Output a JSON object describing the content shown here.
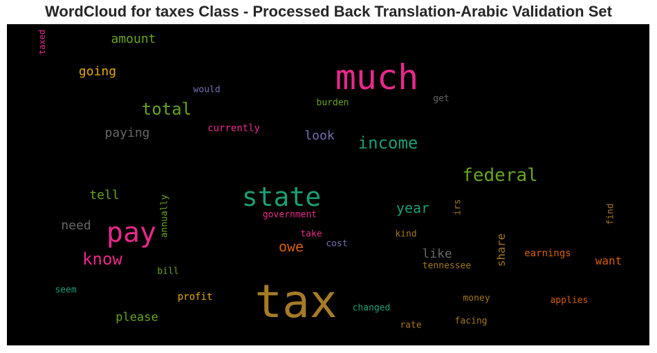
{
  "chart_data": {
    "type": "wordcloud",
    "title": "WordCloud for taxes Class - Processed Back Translation-Arabic Validation Set",
    "background": "#000000",
    "words": [
      {
        "text": "tax",
        "color": "#a67b26"
      },
      {
        "text": "much",
        "color": "#e7298a"
      },
      {
        "text": "state",
        "color": "#1b9e77"
      },
      {
        "text": "pay",
        "color": "#e7298a"
      },
      {
        "text": "federal",
        "color": "#66a61e"
      },
      {
        "text": "income",
        "color": "#1b9e77"
      },
      {
        "text": "total",
        "color": "#66a61e"
      },
      {
        "text": "know",
        "color": "#e7298a"
      },
      {
        "text": "owe",
        "color": "#d95f02"
      },
      {
        "text": "year",
        "color": "#1b9e77"
      },
      {
        "text": "amount",
        "color": "#66a61e"
      },
      {
        "text": "going",
        "color": "#e6ab02"
      },
      {
        "text": "tell",
        "color": "#66a61e"
      },
      {
        "text": "paying",
        "color": "#666666"
      },
      {
        "text": "need",
        "color": "#666666"
      },
      {
        "text": "look",
        "color": "#7570b3"
      },
      {
        "text": "please",
        "color": "#66a61e"
      },
      {
        "text": "like",
        "color": "#666666"
      },
      {
        "text": "share",
        "color": "#a6761d"
      },
      {
        "text": "want",
        "color": "#d95f02"
      },
      {
        "text": "would",
        "color": "#7570b3"
      },
      {
        "text": "currently",
        "color": "#e7298a"
      },
      {
        "text": "burden",
        "color": "#66a61e"
      },
      {
        "text": "get",
        "color": "#666666"
      },
      {
        "text": "government",
        "color": "#e7298a"
      },
      {
        "text": "take",
        "color": "#e7298a"
      },
      {
        "text": "cost",
        "color": "#7570b3"
      },
      {
        "text": "kind",
        "color": "#a6761d"
      },
      {
        "text": "tennessee",
        "color": "#a6761d"
      },
      {
        "text": "earnings",
        "color": "#d95f02"
      },
      {
        "text": "applies",
        "color": "#d95f02"
      },
      {
        "text": "money",
        "color": "#a6761d"
      },
      {
        "text": "facing",
        "color": "#a6761d"
      },
      {
        "text": "rate",
        "color": "#a6761d"
      },
      {
        "text": "changed",
        "color": "#1b9e77"
      },
      {
        "text": "profit",
        "color": "#e6ab02"
      },
      {
        "text": "bill",
        "color": "#66a61e"
      },
      {
        "text": "seem",
        "color": "#1b9e77"
      },
      {
        "text": "irs",
        "color": "#a6761d"
      },
      {
        "text": "find",
        "color": "#a6761d"
      },
      {
        "text": "annually",
        "color": "#66a61e"
      },
      {
        "text": "taxed",
        "color": "#e7298a"
      }
    ]
  }
}
